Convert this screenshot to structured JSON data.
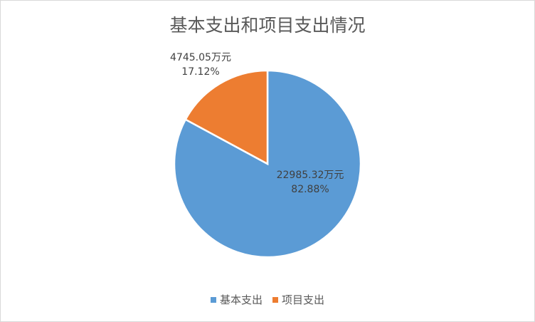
{
  "chart_data": {
    "type": "pie",
    "title": "基本支出和项目支出情况",
    "unit": "万元",
    "slices": [
      {
        "name": "基本支出",
        "value": 22985.32,
        "percent": "82.88%",
        "value_label": "22985.32万元",
        "color": "#5b9bd5"
      },
      {
        "name": "项目支出",
        "value": 4745.05,
        "percent": "17.12%",
        "value_label": "4745.05万元",
        "color": "#ed7d31"
      }
    ],
    "legend_position": "bottom"
  }
}
